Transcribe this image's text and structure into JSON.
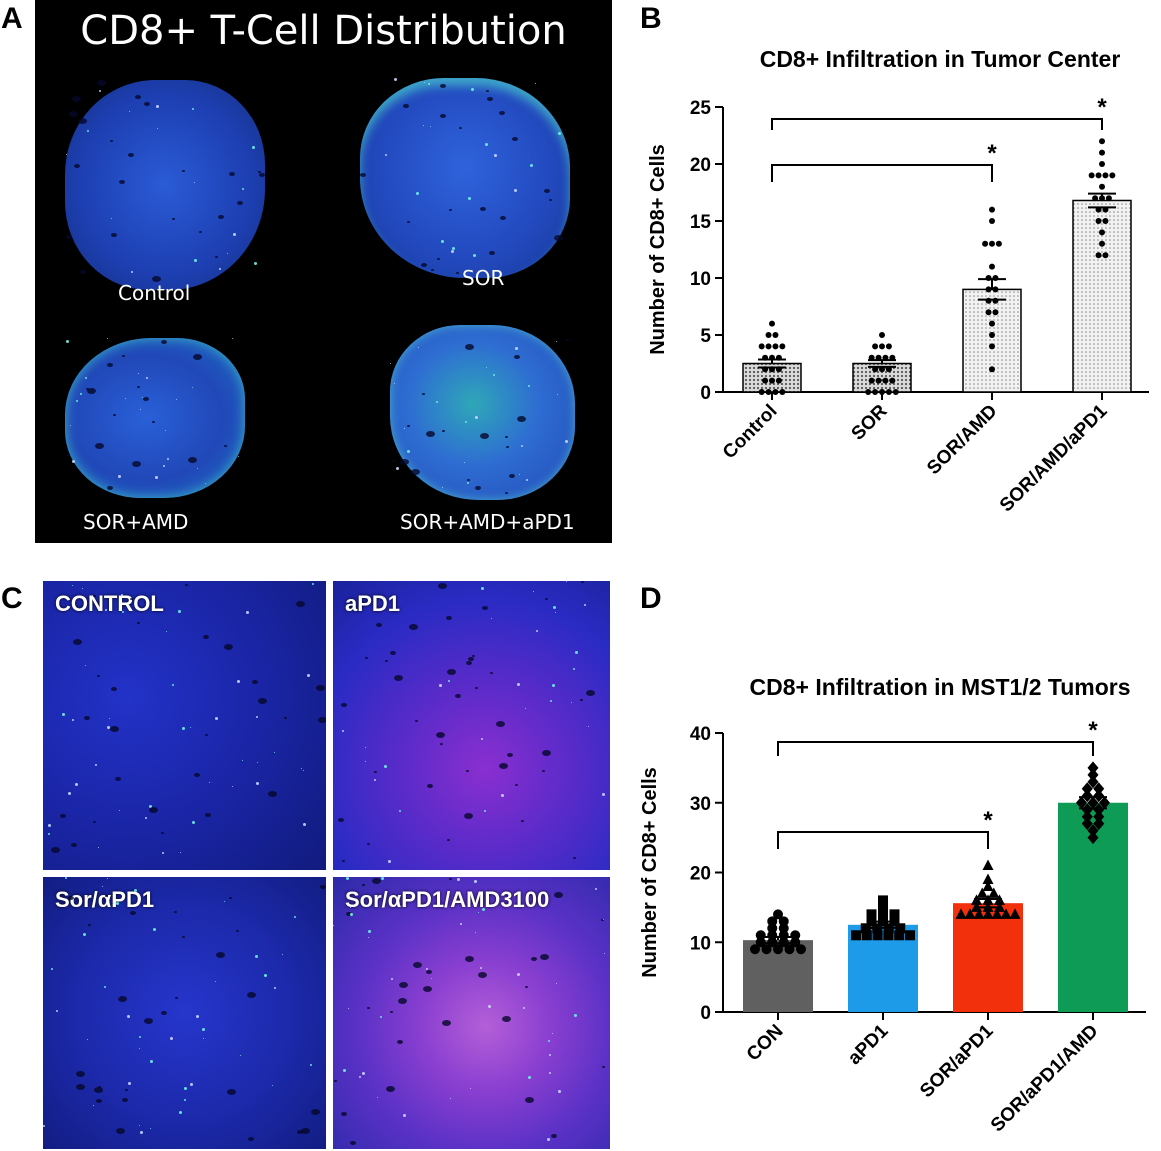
{
  "panel_letters": [
    "A",
    "B",
    "C",
    "D"
  ],
  "panelA": {
    "title": "CD8+ T-Cell Distribution",
    "labels": [
      "Control",
      "SOR",
      "SOR+AMD",
      "SOR+AMD+aPD1"
    ]
  },
  "panelC": {
    "labels": [
      "CONTROL",
      "aPD1",
      "Sor/αPD1",
      "Sor/αPD1/AMD3100"
    ]
  },
  "chart_data": [
    {
      "type": "bar",
      "title": "CD8+ Infiltration in Tumor Center",
      "ylabel": "Number of CD8+ Cells",
      "xlabel": "",
      "categories": [
        "Control",
        "SOR",
        "SOR/AMD",
        "SOR/AMD/aPD1"
      ],
      "values": [
        2.5,
        2.5,
        9.0,
        16.8
      ],
      "errors": [
        0.35,
        0.3,
        0.9,
        0.6
      ],
      "ylim": [
        0,
        25
      ],
      "yticks": [
        0,
        5,
        10,
        15,
        20,
        25
      ],
      "points": [
        [
          6,
          5,
          5,
          4,
          4,
          4,
          4,
          3,
          3,
          3,
          2,
          2,
          2,
          1,
          1,
          1,
          0,
          0,
          0,
          0
        ],
        [
          5,
          4,
          4,
          4,
          3,
          3,
          3,
          3,
          2,
          2,
          2,
          1,
          1,
          1,
          1,
          0,
          0,
          0,
          0,
          0
        ],
        [
          16,
          15,
          13,
          13,
          13,
          11,
          10,
          10,
          9,
          9,
          8,
          8,
          7,
          7,
          6,
          5,
          4,
          2
        ],
        [
          22,
          21,
          20,
          19,
          19,
          19,
          19,
          18,
          17,
          17,
          17,
          16,
          16,
          15,
          15,
          14,
          13,
          12,
          12
        ]
      ],
      "colors": [
        "#bdbdbd",
        "#bdbdbd",
        "#e2e2e2",
        "#e2e2e2"
      ],
      "markers": [
        "circle",
        "circle",
        "circle",
        "circle"
      ],
      "significance": [
        {
          "from": 0,
          "to": 2,
          "label": "*"
        },
        {
          "from": 0,
          "to": 3,
          "label": "*"
        }
      ]
    },
    {
      "type": "bar",
      "title": "CD8+ Infiltration in MST1/2 Tumors",
      "ylabel": "Number of CD8+ Cells",
      "xlabel": "",
      "categories": [
        "CON",
        "aPD1",
        "SOR/aPD1",
        "SOR/aPD1/AMD"
      ],
      "values": [
        10.3,
        12.5,
        15.6,
        30.0
      ],
      "errors": [
        0.45,
        0.45,
        0.6,
        0.8
      ],
      "ylim": [
        0,
        40
      ],
      "yticks": [
        0,
        10,
        20,
        30,
        40
      ],
      "points": [
        [
          14,
          13,
          13,
          12,
          12,
          11,
          11,
          11,
          11,
          10,
          10,
          10,
          10,
          9,
          9,
          9,
          9,
          9
        ],
        [
          16,
          15,
          14,
          14,
          14,
          13,
          13,
          13,
          12,
          12,
          12,
          12,
          11,
          11,
          11,
          11,
          11,
          11
        ],
        [
          21,
          19,
          18,
          17,
          17,
          16,
          16,
          16,
          15,
          15,
          15,
          14,
          14,
          14,
          14,
          14,
          14,
          14
        ],
        [
          35,
          34,
          33,
          32,
          32,
          31,
          31,
          30,
          30,
          30,
          29,
          29,
          28,
          28,
          27,
          27,
          26,
          25
        ]
      ],
      "colors": [
        "#606060",
        "#1e9be8",
        "#f3300c",
        "#0e9b56"
      ],
      "markers": [
        "circle",
        "square",
        "triangle",
        "diamond"
      ],
      "significance": [
        {
          "from": 0,
          "to": 2,
          "label": "*"
        },
        {
          "from": 0,
          "to": 3,
          "label": "*"
        }
      ]
    }
  ]
}
